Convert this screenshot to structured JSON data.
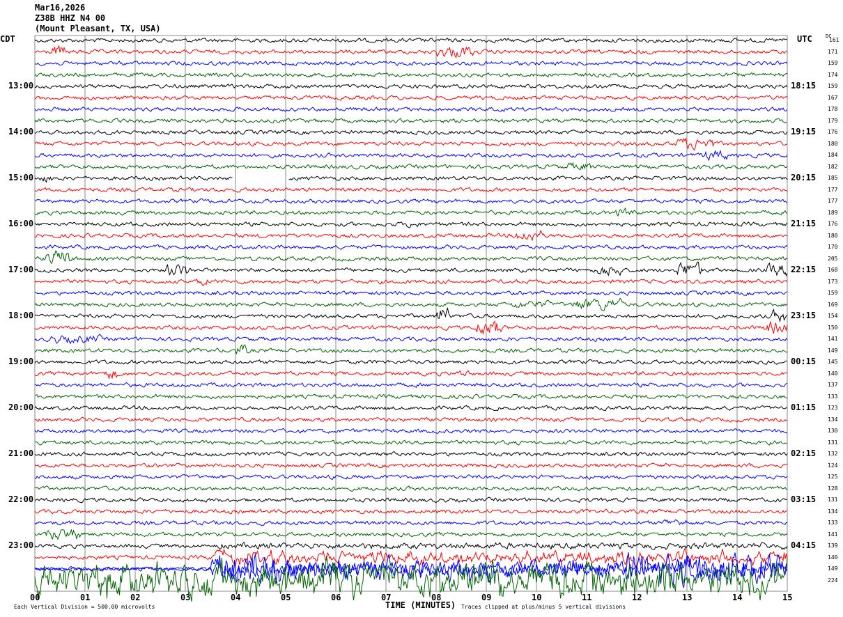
{
  "header": {
    "date": "Mar16,2026",
    "station": "Z38B HHZ N4 00",
    "location": "(Mount Pleasant, TX, USA)"
  },
  "left_timezone": "CDT",
  "right_timezone": "UTC",
  "dc_label": "DC",
  "chart_data": {
    "type": "line",
    "subtype": "helicorder",
    "xlabel": "TIME (MINUTES)",
    "x_ticks": [
      "00",
      "01",
      "02",
      "03",
      "04",
      "05",
      "06",
      "07",
      "08",
      "09",
      "10",
      "11",
      "12",
      "13",
      "14",
      "15"
    ],
    "xlim": [
      0,
      15
    ],
    "grid": "vertical lines every minute",
    "trace_colors": [
      "#000000",
      "#ff0000",
      "#0000ff",
      "#006400"
    ],
    "rows_per_hour": 4,
    "left_hour_labels": [
      "13:00",
      "14:00",
      "15:00",
      "16:00",
      "17:00",
      "18:00",
      "19:00",
      "20:00",
      "21:00",
      "22:00",
      "23:00"
    ],
    "right_hour_labels": [
      "18:15",
      "19:15",
      "20:15",
      "21:15",
      "22:15",
      "23:15",
      "00:15",
      "01:15",
      "02:15",
      "03:15",
      "04:15"
    ],
    "dc_offsets": [
      161,
      171,
      159,
      174,
      159,
      167,
      178,
      179,
      176,
      180,
      184,
      182,
      185,
      177,
      177,
      189,
      176,
      180,
      170,
      205,
      168,
      173,
      159,
      169,
      154,
      150,
      141,
      149,
      145,
      140,
      137,
      133,
      123,
      134,
      130,
      131,
      132,
      124,
      125,
      128,
      131,
      134,
      133,
      141,
      139,
      140,
      149,
      224
    ],
    "scale_note": "Each Vertical Division =  500.00 microvolts",
    "clip_note": "Traces clipped at plus/minus 5 vertical divisions"
  }
}
